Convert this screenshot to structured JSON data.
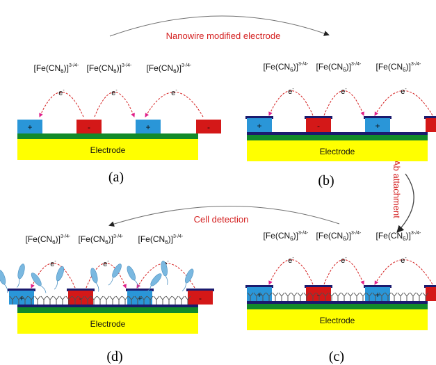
{
  "arrows": {
    "top": "Nanowire modified electrode",
    "right": "Ab attachment",
    "bottom": "Cell detection"
  },
  "redox_species": {
    "main": "[Fe(CN",
    "sub": "6",
    "tail": ")]",
    "sup": "3-/4-"
  },
  "electron": {
    "main": "e",
    "sup": "-"
  },
  "electrode_label": "Electrode",
  "electrode_sign_plus": "+",
  "electrode_sign_minus": "-",
  "panels": {
    "a": {
      "caption": "(a)"
    },
    "b": {
      "caption": "(b)"
    },
    "c": {
      "caption": "(c)"
    },
    "d": {
      "caption": "(d)"
    }
  },
  "colors": {
    "electrode_yellow": "#ffff00",
    "green_layer": "#128a2a",
    "blue_electrode": "#2a96d8",
    "red_electrode": "#d41818",
    "nanowire_navy": "#1a1a6e",
    "arrow_red_text": "#d42020",
    "cell_blue": "#7ab8e0",
    "antibody_gray": "#505050",
    "arrow_gray": "#707070",
    "marker_pink": "#e0208a"
  }
}
